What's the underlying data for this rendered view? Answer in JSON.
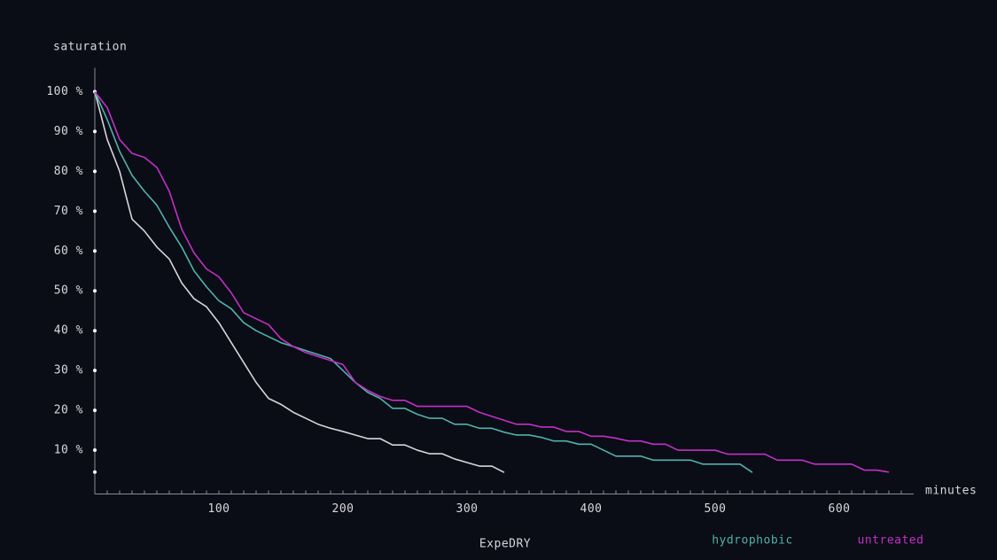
{
  "chart_data": {
    "type": "line",
    "y_label": "saturation",
    "x_label": "minutes",
    "xlim": [
      0,
      660
    ],
    "ylim": [
      -1,
      106
    ],
    "xticks": [
      100,
      200,
      300,
      400,
      500,
      600
    ],
    "x_minor_ticks": [
      10,
      20,
      30,
      40,
      50,
      60,
      70,
      80,
      90,
      110,
      120,
      130,
      140,
      150,
      160,
      170,
      180,
      190,
      210,
      220,
      230,
      240,
      250,
      260,
      270,
      280,
      290,
      310,
      320,
      330,
      340,
      350,
      360,
      370,
      380,
      390,
      410,
      420,
      430,
      440,
      450,
      460,
      470,
      480,
      490,
      510,
      520,
      530,
      540,
      550,
      560,
      570,
      580,
      590,
      610,
      620,
      630,
      640,
      650
    ],
    "yticks": [
      {
        "value": 100,
        "label": "100 %"
      },
      {
        "value": 90,
        "label": "90 %"
      },
      {
        "value": 80,
        "label": "80 %"
      },
      {
        "value": 70,
        "label": "70 %"
      },
      {
        "value": 60,
        "label": "60 %"
      },
      {
        "value": 50,
        "label": "50 %"
      },
      {
        "value": 40,
        "label": "40 %"
      },
      {
        "value": 30,
        "label": "30 %"
      },
      {
        "value": 20,
        "label": "20 %"
      },
      {
        "value": 10,
        "label": "10 %"
      },
      {
        "value": 4.5,
        "label": null
      }
    ],
    "series": [
      {
        "name": "ExpeDRY",
        "color": "#d6d6da",
        "x": [
          0,
          10,
          20,
          30,
          40,
          50,
          60,
          70,
          80,
          90,
          100,
          110,
          120,
          130,
          140,
          150,
          160,
          170,
          180,
          190,
          200,
          210,
          220,
          230,
          240,
          250,
          260,
          270,
          280,
          290,
          300,
          310,
          320,
          330
        ],
        "values": [
          100,
          88,
          80,
          68,
          65,
          61,
          58,
          52,
          48,
          46,
          42,
          37,
          32,
          27,
          23,
          21.5,
          19.5,
          18,
          16.5,
          15.5,
          14.7,
          13.8,
          12.9,
          12.9,
          11.3,
          11.3,
          10,
          9.1,
          9.1,
          7.8,
          6.9,
          6,
          6,
          4.4
        ]
      },
      {
        "name": "hydrophobic",
        "color": "#4fb3a9",
        "x": [
          0,
          10,
          20,
          30,
          40,
          50,
          60,
          70,
          80,
          90,
          100,
          110,
          120,
          130,
          140,
          150,
          160,
          170,
          180,
          190,
          200,
          210,
          220,
          230,
          240,
          250,
          260,
          270,
          280,
          290,
          300,
          310,
          320,
          330,
          340,
          350,
          360,
          370,
          380,
          390,
          400,
          410,
          420,
          430,
          440,
          450,
          460,
          470,
          480,
          490,
          500,
          510,
          520,
          530
        ],
        "values": [
          100,
          93,
          85,
          79,
          75,
          71.5,
          66,
          61,
          55,
          51,
          47.5,
          45.5,
          42,
          40,
          38.5,
          37,
          36,
          35,
          34,
          33,
          30,
          27,
          24.5,
          23,
          20.5,
          20.5,
          19,
          18,
          18,
          16.5,
          16.5,
          15.5,
          15.5,
          14.5,
          13.8,
          13.8,
          13.2,
          12.3,
          12.3,
          11.5,
          11.5,
          10,
          8.5,
          8.5,
          8.5,
          7.5,
          7.5,
          7.5,
          7.5,
          6.5,
          6.5,
          6.5,
          6.5,
          4.4
        ]
      },
      {
        "name": "untreated",
        "color": "#c42fc6",
        "x": [
          0,
          10,
          20,
          30,
          40,
          50,
          60,
          70,
          80,
          90,
          100,
          110,
          120,
          130,
          140,
          150,
          160,
          170,
          180,
          190,
          200,
          210,
          220,
          230,
          240,
          250,
          260,
          270,
          280,
          290,
          300,
          310,
          320,
          330,
          340,
          350,
          360,
          370,
          380,
          390,
          400,
          410,
          420,
          430,
          440,
          450,
          460,
          470,
          480,
          490,
          500,
          510,
          520,
          530,
          540,
          550,
          560,
          570,
          580,
          590,
          600,
          610,
          620,
          630,
          640
        ],
        "values": [
          100,
          96,
          88,
          84.5,
          83.5,
          81,
          75,
          65.5,
          59.5,
          55.5,
          53.5,
          49.5,
          44.5,
          43,
          41.5,
          38,
          36,
          34.5,
          33.5,
          32.5,
          31.5,
          27,
          25,
          23.5,
          22.5,
          22.5,
          21,
          21,
          21,
          21,
          21,
          19.5,
          18.5,
          17.5,
          16.5,
          16.5,
          15.8,
          15.8,
          14.7,
          14.7,
          13.5,
          13.5,
          13,
          12.3,
          12.3,
          11.5,
          11.5,
          10,
          10,
          10,
          10,
          9,
          9,
          9,
          9,
          7.5,
          7.5,
          7.5,
          6.5,
          6.5,
          6.5,
          6.5,
          5,
          5,
          4.5
        ]
      }
    ]
  }
}
